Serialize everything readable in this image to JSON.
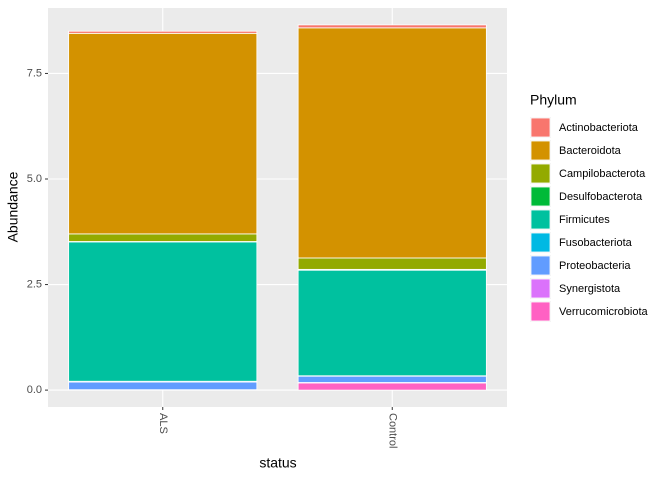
{
  "chart_data": {
    "type": "stacked-bar",
    "x_label": "status",
    "y_label": "Abundance",
    "legend_title": "Phylum",
    "categories": [
      "ALS",
      "Control"
    ],
    "ylim": [
      -0.4,
      9.05
    ],
    "yticks": [
      {
        "value": 0,
        "label": "0.0"
      },
      {
        "value": 2.5,
        "label": "2.5"
      },
      {
        "value": 5,
        "label": "5.0"
      },
      {
        "value": 7.5,
        "label": "7.5"
      }
    ],
    "grid": true,
    "legend_position": "right",
    "series": [
      {
        "name": "Actinobacteriota",
        "color": "#F8766D",
        "values": [
          0.05,
          0.07
        ]
      },
      {
        "name": "Bacteroidota",
        "color": "#D39200",
        "values": [
          4.75,
          5.45
        ]
      },
      {
        "name": "Campilobacterota",
        "color": "#93AA00",
        "values": [
          0.18,
          0.27
        ]
      },
      {
        "name": "Desulfobacterota",
        "color": "#00BA38",
        "values": [
          0.01,
          0.02
        ]
      },
      {
        "name": "Firmicutes",
        "color": "#00C19F",
        "values": [
          3.3,
          2.5
        ]
      },
      {
        "name": "Fusobacteriota",
        "color": "#00B9E3",
        "values": [
          0.02,
          0.01
        ]
      },
      {
        "name": "Proteobacteria",
        "color": "#619CFF",
        "values": [
          0.18,
          0.15
        ]
      },
      {
        "name": "Synergistota",
        "color": "#DB72FB",
        "values": [
          0.01,
          0.01
        ]
      },
      {
        "name": "Verrucomicrobiota",
        "color": "#FF61C3",
        "values": [
          0,
          0.17
        ]
      }
    ]
  }
}
